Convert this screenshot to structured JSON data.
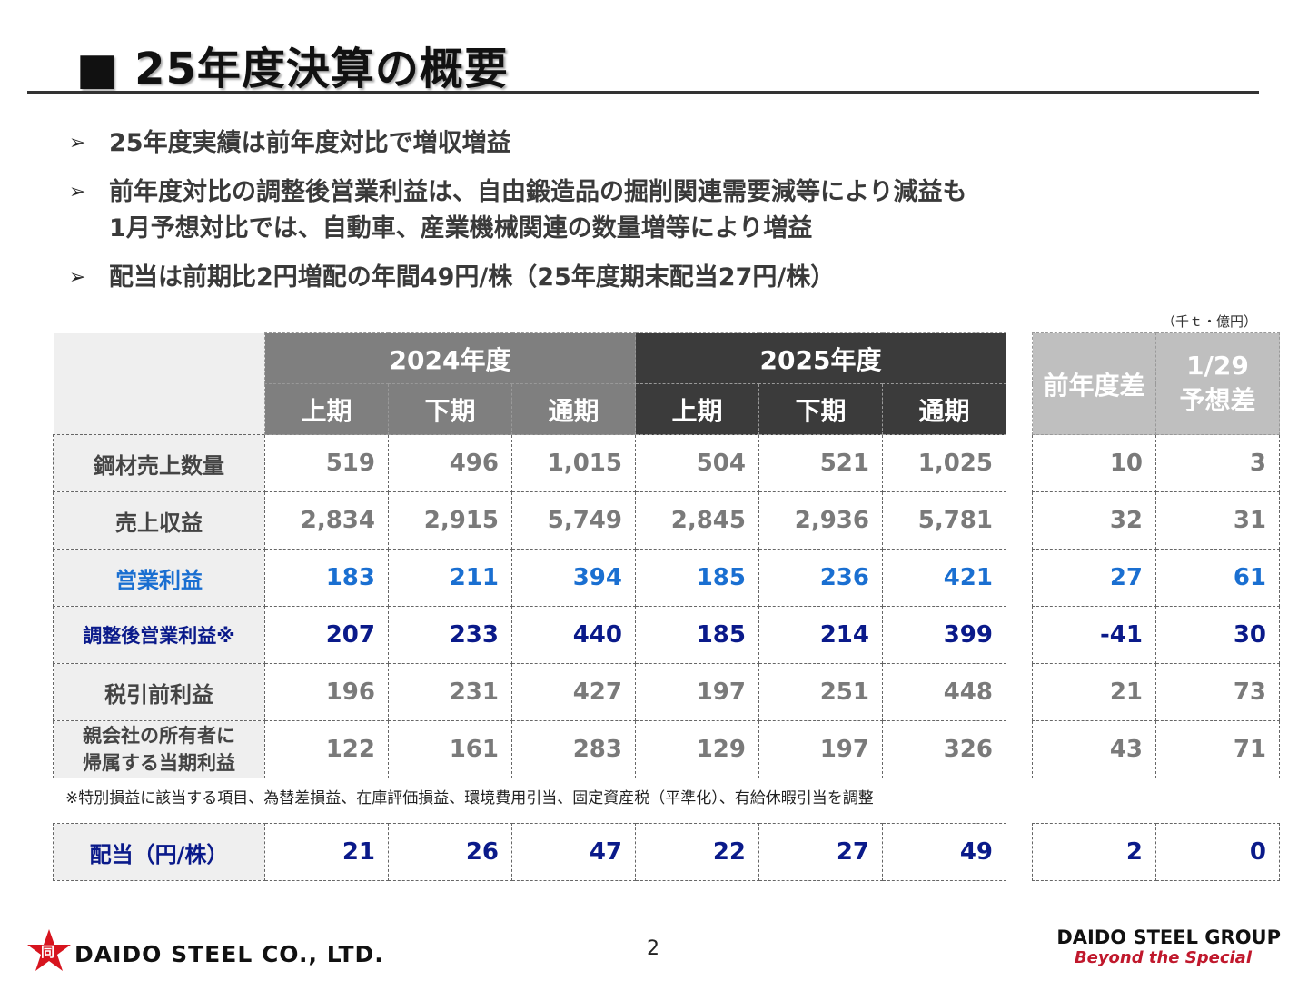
{
  "title": "■ 25年度決算の概要",
  "bullets": [
    {
      "line1": "25年度実績は前年度対比で増収増益",
      "line2": ""
    },
    {
      "line1": "前年度対比の調整後営業利益は、自由鍛造品の掘削関連需要減等により減益も",
      "line2": "1月予想対比では、自動車、産業機械関連の数量増等により増益"
    },
    {
      "line1": "配当は前期比2円増配の年間49円/株（25年度期末配当27円/株）",
      "line2": ""
    }
  ],
  "unit": "（千ｔ・億円）",
  "header": {
    "fy2024": "2024年度",
    "fy2025": "2025年度",
    "h1": "上期",
    "h2": "下期",
    "full": "通期",
    "diff_prev": "前年度差",
    "diff_fc_1": "1/29",
    "diff_fc_2": "予想差"
  },
  "rows": [
    {
      "label": "鋼材売上数量",
      "label2": "",
      "v": [
        "519",
        "496",
        "1,015",
        "504",
        "521",
        "1,025"
      ],
      "d": [
        "10",
        "3"
      ]
    },
    {
      "label": "売上収益",
      "label2": "",
      "v": [
        "2,834",
        "2,915",
        "5,749",
        "2,845",
        "2,936",
        "5,781"
      ],
      "d": [
        "32",
        "31"
      ]
    },
    {
      "label": "営業利益",
      "label2": "",
      "v": [
        "183",
        "211",
        "394",
        "185",
        "236",
        "421"
      ],
      "d": [
        "27",
        "61"
      ]
    },
    {
      "label": "調整後営業利益※",
      "label2": "",
      "v": [
        "207",
        "233",
        "440",
        "185",
        "214",
        "399"
      ],
      "d": [
        "-41",
        "30"
      ]
    },
    {
      "label": "税引前利益",
      "label2": "",
      "v": [
        "196",
        "231",
        "427",
        "197",
        "251",
        "448"
      ],
      "d": [
        "21",
        "73"
      ]
    },
    {
      "label": "親会社の所有者に",
      "label2": "帰属する当期利益",
      "v": [
        "122",
        "161",
        "283",
        "129",
        "197",
        "326"
      ],
      "d": [
        "43",
        "71"
      ]
    }
  ],
  "note": "※特別損益に該当する項目、為替差損益、在庫評価損益、環境費用引当、固定資産税（平準化）、有給休暇引当を調整",
  "dividend": {
    "label": "配当（円/株）",
    "v": [
      "21",
      "26",
      "47",
      "22",
      "27",
      "49"
    ],
    "d": [
      "2",
      "0"
    ]
  },
  "footer": {
    "company": "DAIDO STEEL CO., LTD.",
    "logo_char": "同",
    "page": "2",
    "group": "DAIDO STEEL GROUP",
    "slogan": "Beyond the Special"
  },
  "colors": {
    "blue": "#1a6fd1",
    "navy": "#0a1a8a",
    "fy2024_header": "#7f7f7f",
    "fy2025_header": "#3b3b3b",
    "side_header": "#bfbfbf",
    "logo_red": "#d7141e"
  }
}
